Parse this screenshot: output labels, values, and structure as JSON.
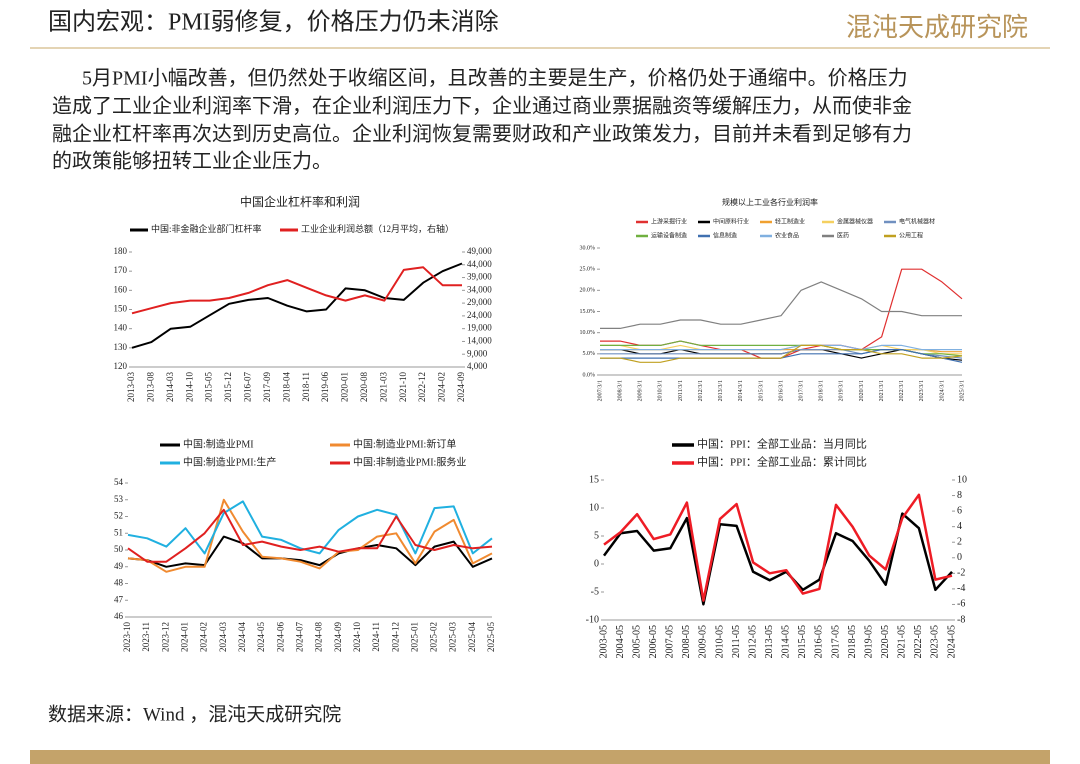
{
  "header": {
    "title": "国内宏观：PMI弱修复，价格压力仍未消除",
    "logo": "混沌天成研究院"
  },
  "body": [
    "5月PMI小幅改善，但仍然处于收缩区间，且改善的主要是生产，价格仍处于通缩中。价格压力",
    "造成了工业企业利润率下滑，在企业利润压力下，企业通过商业票据融资等缓解压力，从而使非金",
    "融企业杠杆率再次达到历史高位。企业利润恢复需要财政和产业政策发力，目前并未看到足够有力",
    "的政策能够扭转工业企业压力。"
  ],
  "footer": "数据来源：Wind ，混沌天成研究院",
  "chart_data": [
    {
      "type": "line",
      "title": "中国企业杠杆率和利润",
      "categories": [
        "2013-03",
        "2013-08",
        "2014-03",
        "2014-10",
        "2015-05",
        "2015-12",
        "2016-07",
        "2017-09",
        "2018-04",
        "2018-11",
        "2019-06",
        "2020-01",
        "2020-08",
        "2021-03",
        "2021-10",
        "2022-12",
        "2024-02",
        "2024-09"
      ],
      "series": [
        {
          "name": "中国:非金融企业部门杠杆率",
          "color": "#000000",
          "values": [
            130,
            133,
            140,
            141,
            147,
            153,
            155,
            156,
            152,
            149,
            150,
            161,
            160,
            156,
            155,
            164,
            170,
            174
          ]
        },
        {
          "name": "工业企业利润总额（12月平均，右轴）",
          "color": "#e02020",
          "axis": "y2",
          "values": [
            25000,
            27000,
            29000,
            30000,
            30000,
            31000,
            33000,
            36000,
            38000,
            35000,
            32000,
            30000,
            32000,
            30000,
            42000,
            43000,
            36000,
            36000
          ]
        }
      ],
      "ylim": [
        120,
        180
      ],
      "yticks": [
        120,
        130,
        140,
        150,
        160,
        170,
        180
      ],
      "y2lim": [
        4000,
        49000
      ],
      "y2ticks": [
        {
          "value": 4000,
          "label": "4,000"
        },
        {
          "value": 9000,
          "label": "9,000"
        },
        {
          "value": 14000,
          "label": "14,000"
        },
        {
          "value": 19000,
          "label": "19,000"
        },
        {
          "value": 24000,
          "label": "24,000"
        },
        {
          "value": 29000,
          "label": "29,000"
        },
        {
          "value": 34000,
          "label": "34,000"
        },
        {
          "value": 39000,
          "label": "39,000"
        },
        {
          "value": 44000,
          "label": "44,000"
        },
        {
          "value": 49000,
          "label": "49,000"
        }
      ]
    },
    {
      "type": "line",
      "title": "规模以上工业各行业利润率",
      "categories": [
        "2007/3/1",
        "2008/3/1",
        "2009/3/1",
        "2010/3/1",
        "2011/3/1",
        "2012/3/1",
        "2013/3/1",
        "2014/3/1",
        "2015/3/1",
        "2016/3/1",
        "2017/3/1",
        "2018/3/1",
        "2019/3/1",
        "2020/3/1",
        "2021/3/1",
        "2022/3/1",
        "2023/3/1",
        "2024/3/1",
        "2025/3/1"
      ],
      "series": [
        {
          "name": "上游采掘行业",
          "color": "#e03030",
          "values": [
            8,
            8,
            7,
            7,
            8,
            7,
            6,
            6,
            4,
            4,
            6,
            7,
            7,
            6,
            9,
            25,
            25,
            22,
            18
          ]
        },
        {
          "name": "中间原料行业",
          "color": "#000000",
          "values": [
            6,
            6,
            5,
            5,
            6,
            5,
            5,
            5,
            5,
            5,
            6,
            6,
            5,
            4,
            5,
            6,
            5,
            4,
            3.5
          ]
        },
        {
          "name": "轻工制造业",
          "color": "#f0a030",
          "values": [
            6,
            6,
            6,
            6,
            6,
            6,
            6,
            6,
            6,
            6,
            6,
            6,
            6,
            6,
            6,
            6,
            6,
            5.5,
            5.5
          ]
        },
        {
          "name": "金属器械仪器",
          "color": "#f5d060",
          "values": [
            7,
            7,
            6,
            6,
            7,
            6,
            6,
            6,
            6,
            6,
            7,
            7,
            6,
            6,
            7,
            6,
            6,
            5,
            5
          ]
        },
        {
          "name": "电气机械器材",
          "color": "#7090c0",
          "values": [
            5,
            5,
            5,
            5,
            5,
            5,
            5,
            5,
            5,
            5,
            6,
            6,
            6,
            5,
            6,
            6,
            5,
            4.5,
            4
          ]
        },
        {
          "name": "运输设备制造",
          "color": "#70b040",
          "values": [
            7,
            7,
            7,
            7,
            8,
            7,
            7,
            7,
            7,
            7,
            7,
            7,
            6,
            6,
            6,
            6,
            5,
            5,
            4.5
          ]
        },
        {
          "name": "信息制造",
          "color": "#4070b0",
          "values": [
            4,
            4,
            4,
            4,
            4,
            4,
            4,
            4,
            4,
            4,
            5,
            5,
            5,
            5,
            6,
            6,
            5,
            4,
            3
          ]
        },
        {
          "name": "农业食品",
          "color": "#80b0e0",
          "values": [
            6,
            6,
            6,
            6,
            6,
            6,
            6,
            6,
            6,
            6,
            7,
            7,
            7,
            6,
            7,
            7,
            6,
            6,
            6
          ]
        },
        {
          "name": "医药",
          "color": "#808080",
          "values": [
            11,
            11,
            12,
            12,
            13,
            13,
            12,
            12,
            13,
            14,
            20,
            22,
            20,
            18,
            15,
            15,
            14,
            14,
            14
          ]
        },
        {
          "name": "公用工程",
          "color": "#c0a020",
          "values": [
            4,
            4,
            3,
            3,
            4,
            4,
            4,
            4,
            4,
            4,
            7,
            7,
            6,
            6,
            5,
            5,
            4,
            4,
            4.5
          ]
        }
      ],
      "ylim": [
        0,
        30
      ],
      "yticks": [
        {
          "value": 0,
          "label": "0.0%"
        },
        {
          "value": 5,
          "label": "5.0%"
        },
        {
          "value": 10,
          "label": "10.0%"
        },
        {
          "value": 15,
          "label": "15.0%"
        },
        {
          "value": 20,
          "label": "20.0%"
        },
        {
          "value": 25,
          "label": "25.0%"
        },
        {
          "value": 30,
          "label": "30.0%"
        }
      ]
    },
    {
      "type": "line",
      "categories": [
        "2023-10",
        "2023-11",
        "2023-12",
        "2024-01",
        "2024-02",
        "2024-03",
        "2024-04",
        "2024-05",
        "2024-06",
        "2024-07",
        "2024-08",
        "2024-09",
        "2024-10",
        "2024-11",
        "2024-12",
        "2025-01",
        "2025-02",
        "2025-03",
        "2025-04",
        "2025-05"
      ],
      "series": [
        {
          "name": "中国:制造业PMI",
          "color": "#000000",
          "values": [
            49.5,
            49.4,
            49.0,
            49.2,
            49.1,
            50.8,
            50.4,
            49.5,
            49.5,
            49.4,
            49.1,
            49.8,
            50.1,
            50.3,
            50.1,
            49.1,
            50.2,
            50.5,
            49.0,
            49.5
          ]
        },
        {
          "name": "中国:制造业PMI:新订单",
          "color": "#f08a30",
          "values": [
            49.5,
            49.4,
            48.7,
            49.0,
            49.0,
            53.0,
            51.1,
            49.6,
            49.5,
            49.3,
            48.9,
            49.9,
            50.0,
            50.8,
            51.0,
            49.2,
            51.1,
            51.8,
            49.2,
            49.8
          ]
        },
        {
          "name": "中国:制造业PMI:生产",
          "color": "#20b0e0",
          "values": [
            50.9,
            50.7,
            50.2,
            51.3,
            49.8,
            52.2,
            52.9,
            50.8,
            50.6,
            50.1,
            49.8,
            51.2,
            52.0,
            52.4,
            52.1,
            49.8,
            52.5,
            52.6,
            49.8,
            50.7
          ]
        },
        {
          "name": "中国:非制造业PMI:服务业",
          "color": "#e02020",
          "values": [
            50.1,
            49.3,
            49.3,
            50.1,
            51.0,
            52.4,
            50.3,
            50.5,
            50.2,
            50.0,
            50.2,
            49.9,
            50.1,
            50.1,
            52.0,
            50.3,
            50.0,
            50.3,
            50.1,
            50.2
          ]
        }
      ],
      "ylim": [
        46,
        54
      ],
      "yticks": [
        46,
        47,
        48,
        49,
        50,
        51,
        52,
        53,
        54
      ]
    },
    {
      "type": "line",
      "categories": [
        "2003-05",
        "2004-05",
        "2005-05",
        "2006-05",
        "2007-05",
        "2008-05",
        "2009-05",
        "2010-05",
        "2011-05",
        "2012-05",
        "2013-05",
        "2014-05",
        "2015-05",
        "2016-05",
        "2017-05",
        "2018-05",
        "2019-05",
        "2020-05",
        "2021-05",
        "2022-05",
        "2023-05",
        "2024-05"
      ],
      "series": [
        {
          "name": "中国：PPI：全部工业品：当月同比",
          "color": "#000000",
          "values": [
            1.5,
            5.5,
            5.9,
            2.4,
            2.8,
            8.2,
            -7.2,
            7.1,
            6.8,
            -1.4,
            -2.9,
            -1.4,
            -4.6,
            -2.8,
            5.5,
            4.1,
            0.6,
            -3.7,
            9.0,
            6.4,
            -4.6,
            -1.4
          ]
        },
        {
          "name": "中国：PPI：全部工业品：累计同比",
          "color": "#ee1c25",
          "axis": "y2",
          "values": [
            1.7,
            3.3,
            5.6,
            2.4,
            3.0,
            7.1,
            -5.5,
            5.0,
            6.9,
            -0.6,
            -2.0,
            -1.6,
            -4.6,
            -4.0,
            6.8,
            4.0,
            0.3,
            -1.5,
            5.1,
            8.1,
            -2.8,
            -2.3
          ]
        }
      ],
      "ylim": [
        -10,
        15
      ],
      "yticks": [
        -10,
        -5,
        0,
        5,
        10,
        15
      ],
      "y2lim": [
        -8,
        10
      ],
      "y2ticks": [
        -8,
        -6,
        -4,
        -2,
        0,
        2,
        4,
        6,
        8,
        10
      ]
    }
  ]
}
